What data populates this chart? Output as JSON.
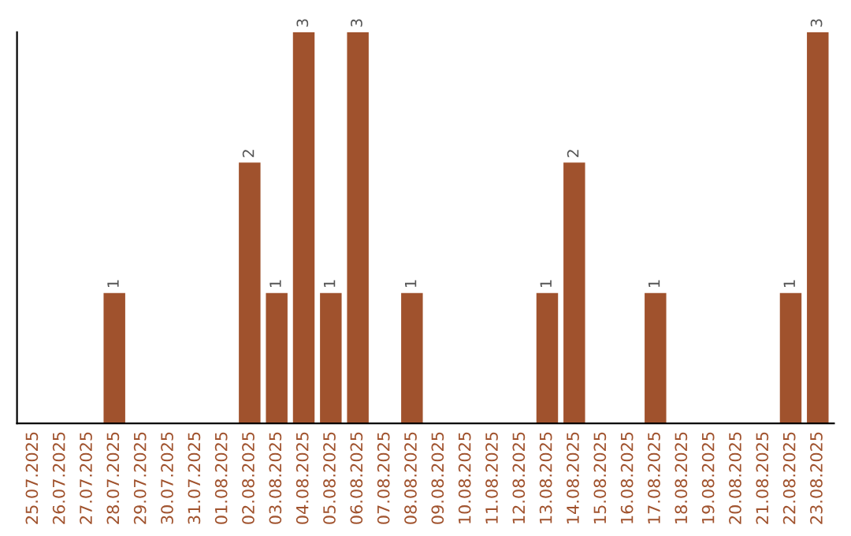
{
  "chart_data": {
    "type": "bar",
    "categories": [
      "25.07.2025",
      "26.07.2025",
      "27.07.2025",
      "28.07.2025",
      "29.07.2025",
      "30.07.2025",
      "31.07.2025",
      "01.08.2025",
      "02.08.2025",
      "03.08.2025",
      "04.08.2025",
      "05.08.2025",
      "06.08.2025",
      "07.08.2025",
      "08.08.2025",
      "09.08.2025",
      "10.08.2025",
      "11.08.2025",
      "12.08.2025",
      "13.08.2025",
      "14.08.2025",
      "15.08.2025",
      "16.08.2025",
      "17.08.2025",
      "18.08.2025",
      "19.08.2025",
      "20.08.2025",
      "21.08.2025",
      "22.08.2025",
      "23.08.2025"
    ],
    "values": [
      0,
      0,
      0,
      1,
      0,
      0,
      0,
      0,
      2,
      1,
      3,
      1,
      3,
      0,
      1,
      0,
      0,
      0,
      0,
      1,
      2,
      0,
      0,
      1,
      0,
      0,
      0,
      0,
      1,
      3
    ],
    "value_labels": [
      null,
      null,
      null,
      "1",
      null,
      null,
      null,
      null,
      "2",
      "1",
      "3",
      "1",
      "3",
      null,
      "1",
      null,
      null,
      null,
      null,
      "1",
      "2",
      null,
      null,
      "1",
      null,
      null,
      null,
      null,
      "1",
      "3"
    ],
    "color": "#a0522d",
    "tick_labels": "x",
    "grid": false,
    "legend": false
  }
}
